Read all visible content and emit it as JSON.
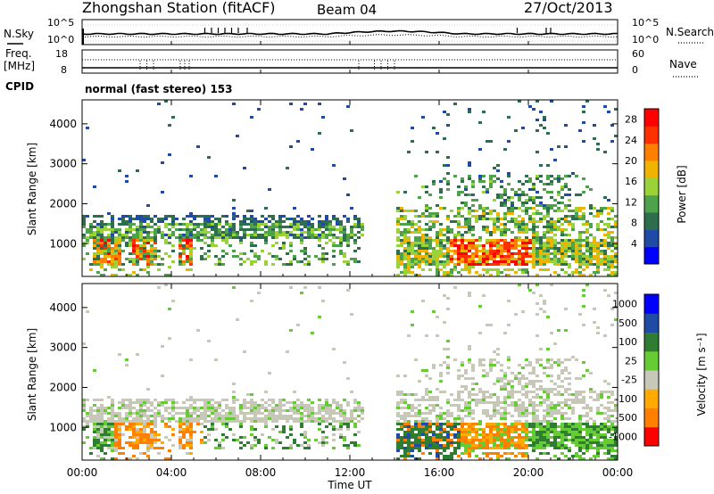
{
  "header": {
    "station": "Zhongshan Station (fitACF)",
    "beam": "Beam 04",
    "date": "27/Oct/2013"
  },
  "noise_panel": {
    "left_label": "N.Sky",
    "right_label": "N.Search",
    "left_ticks": [
      "10^5",
      "10^0"
    ],
    "right_ticks": [
      "10^5",
      "10^0"
    ]
  },
  "freq_panel": {
    "left_label_1": "Freq.",
    "left_label_2": "[MHz]",
    "right_label": "Nave",
    "left_ticks": [
      "18",
      "8"
    ],
    "right_ticks": [
      "60",
      "0"
    ]
  },
  "cpid": {
    "label": "CPID",
    "value": "normal (fast stereo) 153"
  },
  "colors": {
    "power": [
      "#0000ff",
      "#1f4aa6",
      "#2e6e4e",
      "#4ea24a",
      "#9ad23a",
      "#f0b400",
      "#ff7f00",
      "#ff3000",
      "#ff0000"
    ],
    "velocity": [
      "#ff0000",
      "#ff7f00",
      "#ffaa00",
      "#c8c8b8",
      "#66cc33",
      "#2e7d32",
      "#1f4aa6",
      "#0000ff"
    ]
  },
  "chart_data": [
    {
      "type": "heatmap",
      "title": "",
      "ylabel": "Slant Range [km]",
      "xlabel": "",
      "ylim": [
        180,
        4600
      ],
      "xlim": [
        "00:00",
        "24:00"
      ],
      "x_ticks": [
        "00:00",
        "04:00",
        "08:00",
        "12:00",
        "16:00",
        "20:00",
        "00:00"
      ],
      "y_ticks": [
        "1000",
        "2000",
        "3000",
        "4000"
      ],
      "colorbar_label": "Power [dB]",
      "colorbar_ticks": [
        "4",
        "8",
        "12",
        "16",
        "20",
        "24",
        "28"
      ],
      "colorbar_range": [
        0,
        30
      ]
    },
    {
      "type": "heatmap",
      "title": "",
      "ylabel": "Slant Range [km]",
      "xlabel": "Time UT",
      "ylim": [
        180,
        4600
      ],
      "xlim": [
        "00:00",
        "24:00"
      ],
      "x_ticks": [
        "00:00",
        "04:00",
        "08:00",
        "12:00",
        "16:00",
        "20:00",
        "00:00"
      ],
      "y_ticks": [
        "1000",
        "2000",
        "3000",
        "4000"
      ],
      "colorbar_label": "Velocity [m s⁻¹]",
      "colorbar_ticks": [
        "1000",
        "500",
        "100",
        "25",
        "-25",
        "-100",
        "-500",
        "-1000"
      ]
    }
  ]
}
